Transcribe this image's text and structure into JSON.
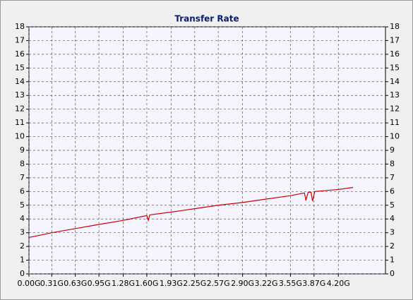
{
  "chart_data": {
    "type": "line",
    "title": "Transfer Rate",
    "x": [
      0,
      0.31,
      0.63,
      0.95,
      1.28,
      1.6,
      1.62,
      1.64,
      1.93,
      2.25,
      2.57,
      2.9,
      3.22,
      3.55,
      3.74,
      3.76,
      3.79,
      3.83,
      3.85,
      3.88,
      4.2,
      4.4
    ],
    "series": [
      {
        "color": "#cc0000",
        "values": [
          2.65,
          3.0,
          3.3,
          3.6,
          3.9,
          4.25,
          3.9,
          4.3,
          4.5,
          4.75,
          5.0,
          5.2,
          5.45,
          5.7,
          5.9,
          5.35,
          5.95,
          5.95,
          5.3,
          6.0,
          6.15,
          6.3
        ]
      }
    ],
    "xlim": [
      0,
      4.84
    ],
    "xticks": [
      {
        "value": 0,
        "label": "0.00G"
      },
      {
        "value": 0.31,
        "label": "0.31G"
      },
      {
        "value": 0.63,
        "label": "0.63G"
      },
      {
        "value": 0.95,
        "label": "0.95G"
      },
      {
        "value": 1.28,
        "label": "1.28G"
      },
      {
        "value": 1.6,
        "label": "1.60G"
      },
      {
        "value": 1.93,
        "label": "1.93G"
      },
      {
        "value": 2.25,
        "label": "2.25G"
      },
      {
        "value": 2.57,
        "label": "2.57G"
      },
      {
        "value": 2.9,
        "label": "2.90G"
      },
      {
        "value": 3.22,
        "label": "3.22G"
      },
      {
        "value": 3.55,
        "label": "3.55G"
      },
      {
        "value": 3.87,
        "label": "3.87G"
      },
      {
        "value": 4.2,
        "label": "4.20G"
      }
    ],
    "ylim": [
      0,
      18
    ],
    "yticks": [
      0,
      1,
      2,
      3,
      4,
      5,
      6,
      7,
      8,
      9,
      10,
      11,
      12,
      13,
      14,
      15,
      16,
      17,
      18
    ],
    "grid": true
  }
}
